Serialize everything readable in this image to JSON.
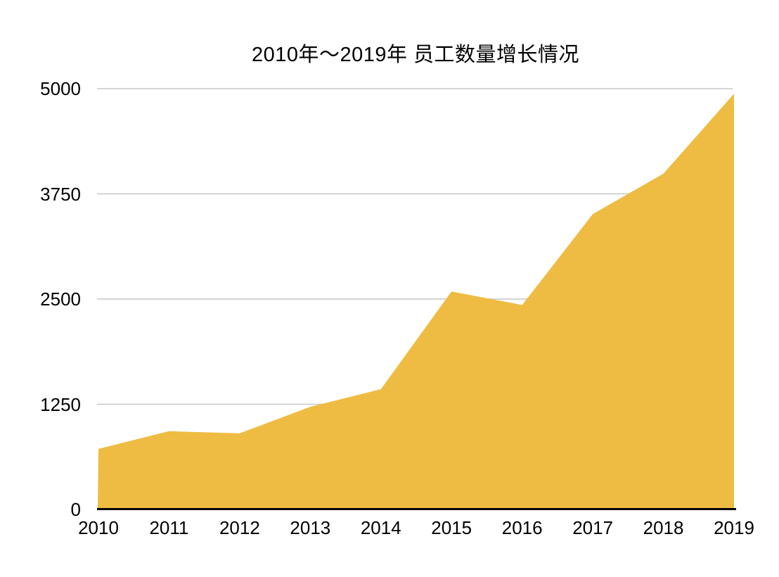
{
  "chart_data": {
    "type": "area",
    "title": "2010年～2019年 员工数量增长情况",
    "x": [
      "2010",
      "2011",
      "2012",
      "2013",
      "2014",
      "2015",
      "2016",
      "2017",
      "2018",
      "2019"
    ],
    "series": [
      {
        "name": "",
        "values": [
          720,
          930,
          905,
          1220,
          1430,
          2590,
          2430,
          3510,
          3990,
          4940
        ]
      }
    ],
    "xlabel": "",
    "ylabel": "",
    "ylim": [
      0,
      5000
    ],
    "yticks": [
      0,
      1250,
      2500,
      3750,
      5000
    ],
    "grid": true,
    "legend_position": "none",
    "colors": {
      "area_fill": "#EFBC43",
      "gridline": "#C7C7C7",
      "axis_line": "#000000",
      "text": "#000000",
      "background": "#FFFFFF"
    }
  }
}
